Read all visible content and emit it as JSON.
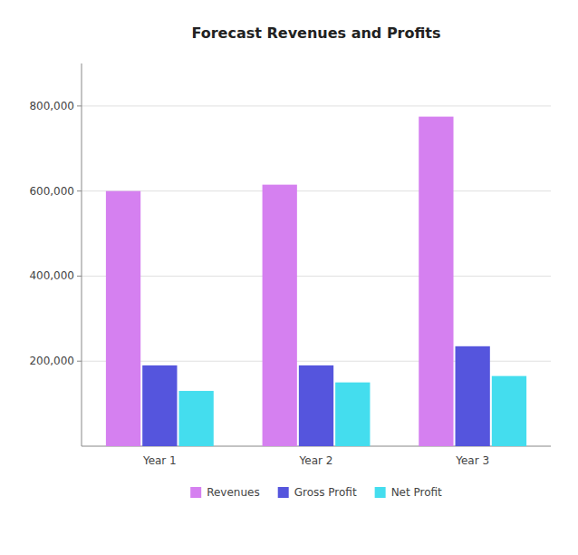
{
  "chart_data": {
    "type": "bar",
    "title": "Forecast Revenues and Profits",
    "categories": [
      "Year 1",
      "Year 2",
      "Year 3"
    ],
    "series": [
      {
        "name": "Revenues",
        "color": "#d580f0",
        "values": [
          600000,
          615000,
          775000
        ]
      },
      {
        "name": "Gross Profit",
        "color": "#5555dd",
        "values": [
          190000,
          190000,
          235000
        ]
      },
      {
        "name": "Net Profit",
        "color": "#44ddee",
        "values": [
          130000,
          150000,
          165000
        ]
      }
    ],
    "ylim": [
      0,
      900000
    ],
    "yticks": [
      {
        "value": 200000,
        "label": "200,000"
      },
      {
        "value": 400000,
        "label": "400,000"
      },
      {
        "value": 600000,
        "label": "600,000"
      },
      {
        "value": 800000,
        "label": "800,000"
      }
    ],
    "grid": true,
    "legend": "bottom"
  }
}
